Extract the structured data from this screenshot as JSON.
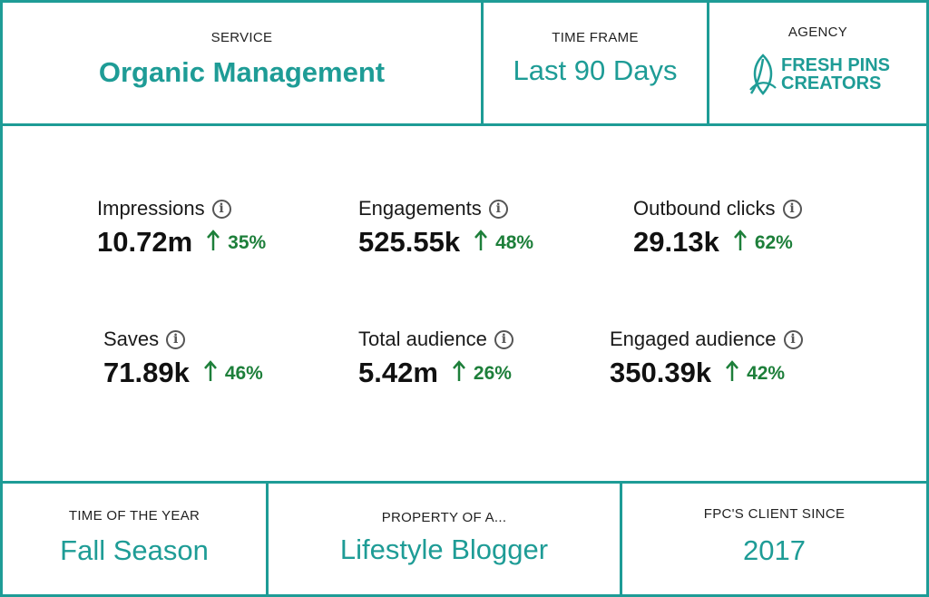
{
  "header": {
    "service_label": "SERVICE",
    "service_value": "Organic Management",
    "timeframe_label": "TIME FRAME",
    "timeframe_value": "Last 90 Days",
    "agency_label": "AGENCY",
    "agency_logo_line1": "FRESH PINS",
    "agency_logo_line2": "CREATORS"
  },
  "metrics": [
    {
      "label": "Impressions",
      "value": "10.72m",
      "change": "35%"
    },
    {
      "label": "Engagements",
      "value": "525.55k",
      "change": "48%"
    },
    {
      "label": "Outbound clicks",
      "value": "29.13k",
      "change": "62%"
    },
    {
      "label": "Saves",
      "value": "71.89k",
      "change": "46%"
    },
    {
      "label": "Total audience",
      "value": "5.42m",
      "change": "26%"
    },
    {
      "label": "Engaged audience",
      "value": "350.39k",
      "change": "42%"
    }
  ],
  "footer": {
    "season_label": "TIME OF THE YEAR",
    "season_value": "Fall Season",
    "property_label": "PROPERTY OF A...",
    "property_value": "Lifestyle Blogger",
    "client_label": "FPC'S CLIENT SINCE",
    "client_value": "2017"
  },
  "colors": {
    "accent": "#1e9c96",
    "positive": "#1d7f3a"
  },
  "icons": {
    "info": "info-icon",
    "up_arrow": "arrow-up-icon",
    "logo": "leaf-logo-icon"
  }
}
